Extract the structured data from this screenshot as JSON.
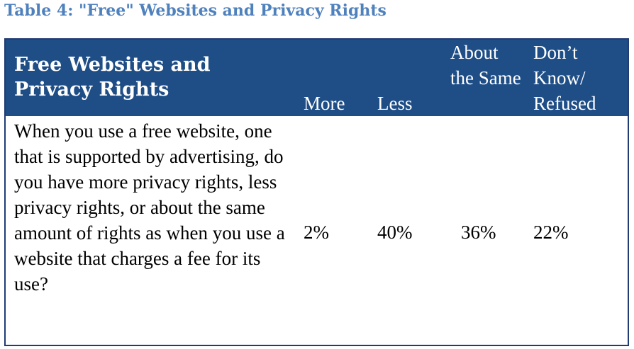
{
  "caption": "Table 4: \"Free\" Websites and Privacy Rights",
  "table": {
    "headers": {
      "topic": "Free Websites and Privacy Rights",
      "more": "More",
      "less": "Less",
      "same": "About the Same",
      "dont_know": "Don’t Know/ Refused"
    },
    "row": {
      "question": "When you use a free website, one that is supported by advertising, do you have more privacy rights, less privacy rights, or about the same amount of rights as when you use a website that charges a fee for its use?",
      "more": "2%",
      "less": "40%",
      "same": "36%",
      "dont_know": "22%"
    }
  },
  "colors": {
    "caption": "#4f81bd",
    "header_bg": "#1f4e87",
    "border": "#1f3c73"
  }
}
